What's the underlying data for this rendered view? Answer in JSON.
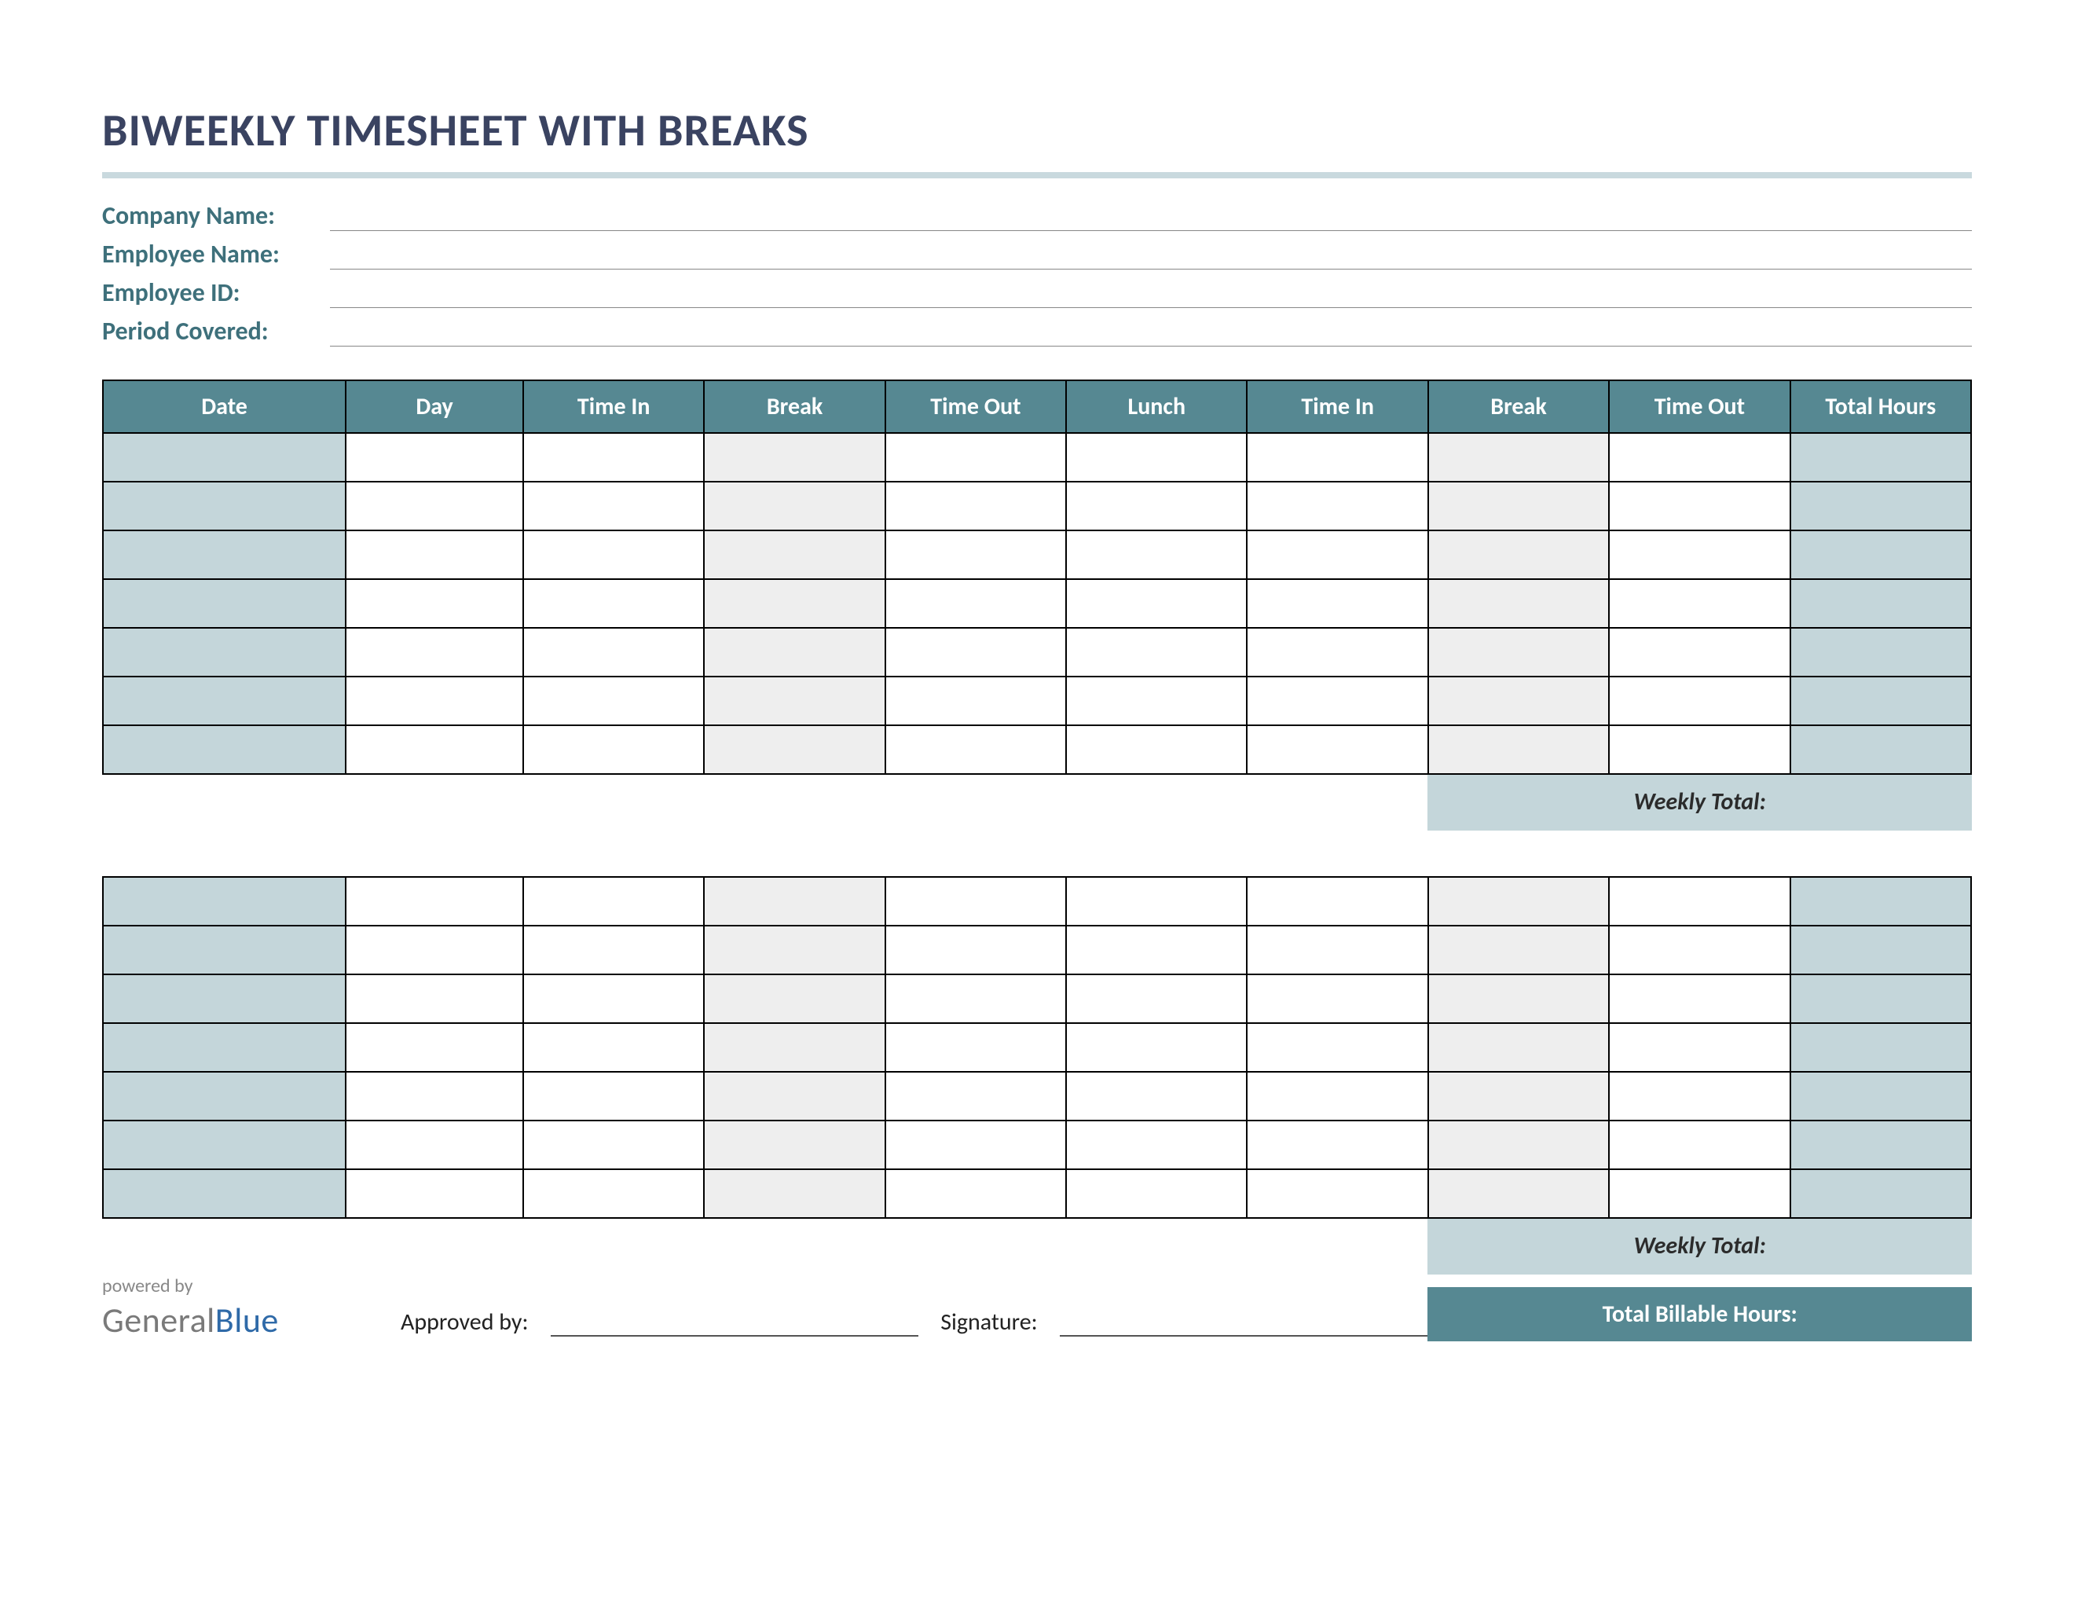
{
  "title": "BIWEEKLY TIMESHEET WITH BREAKS",
  "info_labels": {
    "company": "Company Name:",
    "employee": "Employee Name:",
    "employee_id": "Employee ID:",
    "period": "Period Covered:"
  },
  "columns": [
    "Date",
    "Day",
    "Time In",
    "Break",
    "Time Out",
    "Lunch",
    "Time In",
    "Break",
    "Time Out",
    "Total Hours"
  ],
  "column_types": [
    "date",
    "day",
    "std",
    "break",
    "std",
    "std",
    "std",
    "break",
    "std",
    "total"
  ],
  "rows_per_week": 7,
  "weekly_total_label": "Weekly Total:",
  "footer": {
    "powered_by": "powered by",
    "logo_part1": "General",
    "logo_part2": "Blue",
    "approved_by": "Approved by:",
    "signature": "Signature:",
    "total_billable": "Total Billable Hours:"
  },
  "colors": {
    "header_bg": "#568892",
    "header_fg": "#ffffff",
    "shaded_cell": "#c4d6da",
    "break_cell": "#eeeeee",
    "title_color": "#3a4361",
    "label_color": "#3e707b",
    "rule_color": "#c9d9de",
    "border": "#000000"
  }
}
